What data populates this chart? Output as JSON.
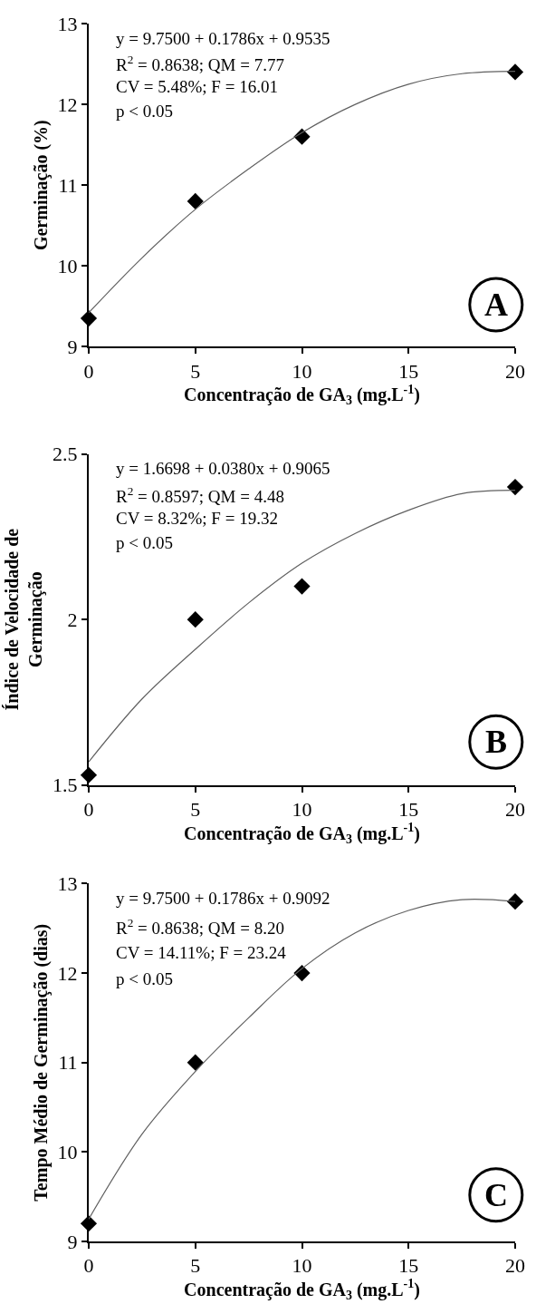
{
  "chart_data": [
    {
      "type": "scatter",
      "xlabel": "Concentração de GA$_{3}$ (mg.L$^{-1}$)",
      "ylabel": "Germinação (%)",
      "xlim": [
        0,
        20
      ],
      "xticks": [
        0,
        5,
        10,
        15,
        20
      ],
      "ylim": [
        9,
        13
      ],
      "yticks": [
        9,
        10,
        11,
        12,
        13
      ],
      "marker": "diamond",
      "annotations": [
        "y = 9.7500 + 0.1786x + 0.9535",
        "R$^{2}$ = 0.8638; QM = 7.77",
        "CV = 5.48%; F = 16.01",
        "p < 0.05",
        "A"
      ],
      "series": [
        {
          "color": "#000000",
          "x": [
            0,
            5,
            10,
            20
          ],
          "values": [
            9.35,
            10.8,
            11.6,
            12.4
          ]
        },
        {
          "type": "line",
          "color": "#606060",
          "marker": "none",
          "x": [
            0,
            2.5,
            5,
            7.5,
            10,
            12.5,
            15,
            17.5,
            20
          ],
          "values": [
            9.42,
            10.1,
            10.7,
            11.2,
            11.65,
            12.0,
            12.25,
            12.38,
            12.41
          ]
        }
      ]
    },
    {
      "type": "scatter",
      "xlabel": "Concentração de GA$_{3}$ (mg.L$^{-1}$)",
      "ylabel": "Índice de Velocidade de\nGerminação",
      "xlim": [
        0,
        20
      ],
      "xticks": [
        0,
        5,
        10,
        15,
        20
      ],
      "ylim": [
        1.5,
        2.5
      ],
      "yticks": [
        1.5,
        2,
        2.5
      ],
      "marker": "diamond",
      "annotations": [
        "y = 1.6698 + 0.0380x + 0.9065",
        "R$^{2}$ = 0.8597; QM = 4.48",
        "CV = 8.32%; F = 19.32",
        "p < 0.05",
        "B"
      ],
      "series": [
        {
          "color": "#000000",
          "x": [
            0,
            5,
            10,
            20
          ],
          "values": [
            1.53,
            2.0,
            2.1,
            2.4
          ]
        },
        {
          "type": "line",
          "color": "#606060",
          "marker": "none",
          "x": [
            0,
            2.5,
            5,
            7.5,
            10,
            12.5,
            15,
            17.5,
            20
          ],
          "values": [
            1.57,
            1.76,
            1.91,
            2.05,
            2.17,
            2.26,
            2.33,
            2.38,
            2.39
          ]
        }
      ]
    },
    {
      "type": "scatter",
      "xlabel": "Concentração de GA$_{3}$ (mg.L$^{-1}$)",
      "ylabel": "Tempo Médio de Germinação (dias)",
      "xlim": [
        0,
        20
      ],
      "xticks": [
        0,
        5,
        10,
        15,
        20
      ],
      "ylim": [
        9,
        13
      ],
      "yticks": [
        9,
        10,
        11,
        12,
        13
      ],
      "marker": "diamond",
      "annotations": [
        "y = 9.7500 + 0.1786x + 0.9092",
        "R$^{2}$ = 0.8638; QM = 8.20",
        "CV = 14.11%; F = 23.24",
        "p < 0.05",
        "C"
      ],
      "series": [
        {
          "color": "#000000",
          "x": [
            0,
            5,
            10,
            20
          ],
          "values": [
            9.2,
            11.0,
            12.0,
            12.8
          ]
        },
        {
          "type": "line",
          "color": "#606060",
          "marker": "none",
          "x": [
            0,
            2.5,
            5,
            7.5,
            10,
            12.5,
            15,
            17.5,
            20
          ],
          "values": [
            9.25,
            10.2,
            10.9,
            11.5,
            12.05,
            12.45,
            12.7,
            12.82,
            12.8
          ]
        }
      ]
    }
  ]
}
